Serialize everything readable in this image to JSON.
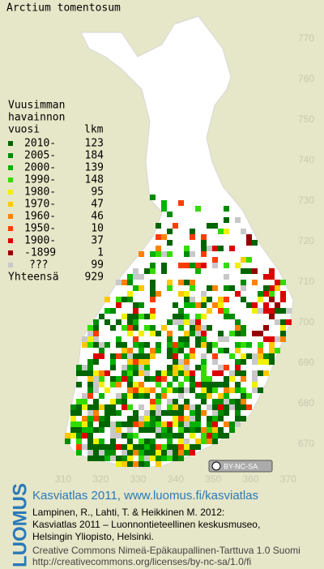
{
  "title": "Arctium tomentosum",
  "legend": {
    "heading": [
      "Vuusimman",
      "havainnon"
    ],
    "year_header": "vuosi",
    "count_header": "lkm",
    "rows": [
      {
        "label": "2010-",
        "count": 123,
        "color": "#006400"
      },
      {
        "label": "2005-",
        "count": 184,
        "color": "#008c00"
      },
      {
        "label": "2000-",
        "count": 139,
        "color": "#00b400"
      },
      {
        "label": "1990-",
        "count": 148,
        "color": "#32dc00"
      },
      {
        "label": "1980-",
        "count": 95,
        "color": "#f0f000"
      },
      {
        "label": "1970-",
        "count": 47,
        "color": "#ffc800"
      },
      {
        "label": "1960-",
        "count": 46,
        "color": "#ff8200"
      },
      {
        "label": "1950-",
        "count": 10,
        "color": "#ff3c00"
      },
      {
        "label": "1900-",
        "count": 37,
        "color": "#dc0000"
      },
      {
        "label": "-1899",
        "count": 1,
        "color": "#960000"
      },
      {
        "label": "???",
        "count": 99,
        "color": "#c8c8c8"
      }
    ],
    "total_label": "Yhteensä",
    "total": 929
  },
  "y_ticks": [
    770,
    760,
    750,
    740,
    730,
    720,
    710,
    700,
    690,
    680,
    670
  ],
  "x_ticks": [
    310,
    320,
    330,
    340,
    350,
    360,
    370
  ],
  "badge": "BY-NC-SA",
  "footer": {
    "logo": "LUOMUS",
    "link": "Kasviatlas 2011, www.luomus.fi/kasviatlas",
    "citation": [
      "Lampinen, R., Lahti, T. & Heikkinen M. 2012:",
      "Kasviatlas 2011 – Luonnontieteellinen keskusmuseo,",
      "Helsingin Yliopisto, Helsinki."
    ],
    "license": [
      "Creative Commons Nimeä-Epäkaupallinen-Tarttuva 1.0 Suomi",
      "http://creativecommons.org/licenses/by-nc-sa/1.0/fi"
    ]
  }
}
